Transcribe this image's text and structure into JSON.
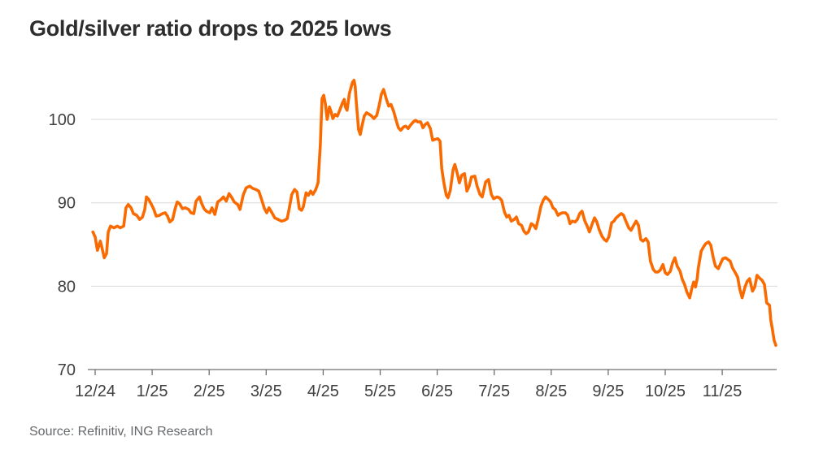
{
  "title": "Gold/silver ratio drops to 2025 lows",
  "source": "Source: Refinitiv, ING Research",
  "colors": {
    "line": "#f96a01",
    "grid": "#d9d9d9",
    "axis": "#6f6f6f",
    "title_text": "#2d2d2d",
    "tick_label": "#404040",
    "source_text": "#66696b"
  },
  "chart_data": {
    "type": "line",
    "title": "Gold/silver ratio drops to 2025 lows",
    "xlabel": "",
    "ylabel": "",
    "x_ticks": [
      "12/24",
      "1/25",
      "2/25",
      "3/25",
      "4/25",
      "5/25",
      "6/25",
      "7/25",
      "8/25",
      "9/25",
      "10/25",
      "11/25"
    ],
    "y_ticks": [
      70,
      80,
      90,
      100
    ],
    "ylim": [
      70,
      106
    ],
    "xlim_months": [
      -0.15,
      12.0
    ],
    "grid": "horizontal",
    "legend": "none",
    "series": [
      {
        "name": "Gold/silver ratio",
        "points": [
          [
            -0.04,
            86.5
          ],
          [
            0.0,
            85.9
          ],
          [
            0.04,
            84.3
          ],
          [
            0.09,
            85.4
          ],
          [
            0.11,
            84.9
          ],
          [
            0.16,
            83.4
          ],
          [
            0.2,
            83.9
          ],
          [
            0.23,
            86.5
          ],
          [
            0.27,
            87.2
          ],
          [
            0.33,
            87.0
          ],
          [
            0.39,
            87.2
          ],
          [
            0.44,
            87.0
          ],
          [
            0.5,
            87.2
          ],
          [
            0.54,
            89.4
          ],
          [
            0.58,
            89.8
          ],
          [
            0.63,
            89.4
          ],
          [
            0.67,
            88.7
          ],
          [
            0.73,
            88.5
          ],
          [
            0.78,
            88.0
          ],
          [
            0.83,
            88.3
          ],
          [
            0.87,
            89.2
          ],
          [
            0.9,
            90.7
          ],
          [
            0.94,
            90.4
          ],
          [
            0.98,
            89.9
          ],
          [
            1.03,
            89.2
          ],
          [
            1.07,
            88.4
          ],
          [
            1.13,
            88.5
          ],
          [
            1.18,
            88.7
          ],
          [
            1.23,
            88.8
          ],
          [
            1.27,
            88.4
          ],
          [
            1.31,
            87.7
          ],
          [
            1.36,
            88.0
          ],
          [
            1.4,
            89.2
          ],
          [
            1.44,
            90.1
          ],
          [
            1.48,
            89.9
          ],
          [
            1.53,
            89.3
          ],
          [
            1.58,
            89.4
          ],
          [
            1.64,
            89.2
          ],
          [
            1.68,
            88.8
          ],
          [
            1.73,
            88.7
          ],
          [
            1.77,
            90.2
          ],
          [
            1.83,
            90.7
          ],
          [
            1.87,
            89.9
          ],
          [
            1.91,
            89.3
          ],
          [
            1.95,
            89.0
          ],
          [
            2.01,
            88.8
          ],
          [
            2.05,
            89.4
          ],
          [
            2.1,
            88.6
          ],
          [
            2.15,
            90.1
          ],
          [
            2.21,
            90.4
          ],
          [
            2.25,
            90.7
          ],
          [
            2.3,
            90.2
          ],
          [
            2.35,
            91.1
          ],
          [
            2.4,
            90.6
          ],
          [
            2.44,
            90.1
          ],
          [
            2.5,
            89.8
          ],
          [
            2.54,
            89.2
          ],
          [
            2.6,
            91.0
          ],
          [
            2.65,
            91.8
          ],
          [
            2.71,
            92.0
          ],
          [
            2.77,
            91.7
          ],
          [
            2.82,
            91.6
          ],
          [
            2.87,
            91.4
          ],
          [
            2.91,
            90.6
          ],
          [
            2.97,
            89.3
          ],
          [
            3.01,
            88.8
          ],
          [
            3.05,
            89.4
          ],
          [
            3.11,
            88.7
          ],
          [
            3.15,
            88.2
          ],
          [
            3.21,
            88.0
          ],
          [
            3.27,
            87.8
          ],
          [
            3.32,
            87.9
          ],
          [
            3.37,
            88.1
          ],
          [
            3.41,
            89.5
          ],
          [
            3.45,
            91.0
          ],
          [
            3.5,
            91.6
          ],
          [
            3.54,
            91.3
          ],
          [
            3.58,
            89.3
          ],
          [
            3.62,
            89.1
          ],
          [
            3.65,
            89.5
          ],
          [
            3.7,
            91.2
          ],
          [
            3.74,
            90.9
          ],
          [
            3.78,
            91.4
          ],
          [
            3.82,
            91.0
          ],
          [
            3.87,
            91.6
          ],
          [
            3.91,
            92.4
          ],
          [
            3.95,
            97.0
          ],
          [
            3.98,
            102.5
          ],
          [
            4.01,
            102.9
          ],
          [
            4.04,
            101.8
          ],
          [
            4.07,
            100.0
          ],
          [
            4.11,
            101.5
          ],
          [
            4.14,
            100.9
          ],
          [
            4.17,
            100.1
          ],
          [
            4.21,
            100.6
          ],
          [
            4.25,
            100.4
          ],
          [
            4.29,
            101.1
          ],
          [
            4.34,
            102.0
          ],
          [
            4.37,
            102.4
          ],
          [
            4.39,
            101.5
          ],
          [
            4.42,
            101.1
          ],
          [
            4.46,
            103.1
          ],
          [
            4.51,
            104.4
          ],
          [
            4.54,
            104.7
          ],
          [
            4.56,
            104.0
          ],
          [
            4.58,
            102.1
          ],
          [
            4.62,
            98.8
          ],
          [
            4.65,
            98.2
          ],
          [
            4.68,
            99.2
          ],
          [
            4.72,
            100.4
          ],
          [
            4.76,
            100.8
          ],
          [
            4.81,
            100.6
          ],
          [
            4.85,
            100.4
          ],
          [
            4.89,
            100.1
          ],
          [
            4.94,
            100.5
          ],
          [
            4.98,
            101.6
          ],
          [
            5.02,
            103.0
          ],
          [
            5.06,
            103.6
          ],
          [
            5.11,
            102.4
          ],
          [
            5.15,
            101.6
          ],
          [
            5.19,
            101.8
          ],
          [
            5.24,
            100.9
          ],
          [
            5.28,
            99.9
          ],
          [
            5.32,
            99.0
          ],
          [
            5.36,
            98.7
          ],
          [
            5.41,
            99.1
          ],
          [
            5.45,
            99.2
          ],
          [
            5.49,
            98.9
          ],
          [
            5.53,
            99.3
          ],
          [
            5.58,
            99.7
          ],
          [
            5.62,
            99.9
          ],
          [
            5.66,
            99.7
          ],
          [
            5.71,
            99.7
          ],
          [
            5.75,
            99.0
          ],
          [
            5.79,
            99.4
          ],
          [
            5.83,
            99.6
          ],
          [
            5.88,
            98.9
          ],
          [
            5.92,
            97.5
          ],
          [
            5.96,
            97.6
          ],
          [
            6.01,
            97.7
          ],
          [
            6.05,
            97.4
          ],
          [
            6.08,
            94.1
          ],
          [
            6.12,
            92.3
          ],
          [
            6.16,
            90.9
          ],
          [
            6.19,
            90.6
          ],
          [
            6.23,
            91.5
          ],
          [
            6.28,
            94.0
          ],
          [
            6.31,
            94.6
          ],
          [
            6.35,
            93.6
          ],
          [
            6.39,
            92.4
          ],
          [
            6.43,
            93.3
          ],
          [
            6.48,
            93.5
          ],
          [
            6.52,
            91.4
          ],
          [
            6.56,
            92.0
          ],
          [
            6.6,
            93.1
          ],
          [
            6.66,
            93.2
          ],
          [
            6.7,
            92.0
          ],
          [
            6.75,
            91.0
          ],
          [
            6.79,
            90.7
          ],
          [
            6.85,
            92.5
          ],
          [
            6.9,
            92.8
          ],
          [
            6.95,
            91.0
          ],
          [
            6.99,
            90.5
          ],
          [
            7.05,
            90.7
          ],
          [
            7.09,
            90.6
          ],
          [
            7.13,
            90.3
          ],
          [
            7.18,
            88.9
          ],
          [
            7.22,
            88.3
          ],
          [
            7.26,
            88.5
          ],
          [
            7.3,
            87.8
          ],
          [
            7.35,
            88.0
          ],
          [
            7.39,
            88.3
          ],
          [
            7.43,
            87.5
          ],
          [
            7.48,
            87.3
          ],
          [
            7.52,
            86.6
          ],
          [
            7.56,
            86.3
          ],
          [
            7.6,
            86.5
          ],
          [
            7.65,
            87.5
          ],
          [
            7.69,
            87.3
          ],
          [
            7.73,
            86.9
          ],
          [
            7.77,
            88.0
          ],
          [
            7.82,
            89.6
          ],
          [
            7.86,
            90.3
          ],
          [
            7.9,
            90.7
          ],
          [
            7.95,
            90.4
          ],
          [
            7.99,
            90.1
          ],
          [
            8.03,
            89.4
          ],
          [
            8.07,
            89.2
          ],
          [
            8.12,
            88.5
          ],
          [
            8.16,
            88.7
          ],
          [
            8.2,
            88.8
          ],
          [
            8.25,
            88.8
          ],
          [
            8.29,
            88.5
          ],
          [
            8.33,
            87.5
          ],
          [
            8.37,
            87.8
          ],
          [
            8.42,
            87.7
          ],
          [
            8.46,
            88.0
          ],
          [
            8.5,
            88.7
          ],
          [
            8.54,
            89.0
          ],
          [
            8.59,
            87.8
          ],
          [
            8.63,
            87.2
          ],
          [
            8.67,
            86.5
          ],
          [
            8.72,
            87.5
          ],
          [
            8.76,
            88.2
          ],
          [
            8.8,
            87.7
          ],
          [
            8.84,
            86.8
          ],
          [
            8.89,
            86.0
          ],
          [
            8.93,
            85.6
          ],
          [
            8.97,
            85.4
          ],
          [
            9.01,
            85.9
          ],
          [
            9.06,
            87.6
          ],
          [
            9.1,
            87.8
          ],
          [
            9.14,
            88.2
          ],
          [
            9.19,
            88.5
          ],
          [
            9.23,
            88.7
          ],
          [
            9.27,
            88.5
          ],
          [
            9.31,
            87.8
          ],
          [
            9.36,
            87.0
          ],
          [
            9.4,
            86.7
          ],
          [
            9.44,
            87.2
          ],
          [
            9.49,
            87.8
          ],
          [
            9.53,
            87.3
          ],
          [
            9.57,
            85.6
          ],
          [
            9.61,
            85.4
          ],
          [
            9.66,
            85.7
          ],
          [
            9.7,
            85.3
          ],
          [
            9.74,
            83.0
          ],
          [
            9.79,
            82.0
          ],
          [
            9.83,
            81.7
          ],
          [
            9.87,
            81.7
          ],
          [
            9.91,
            81.9
          ],
          [
            9.96,
            82.6
          ],
          [
            10.0,
            81.6
          ],
          [
            10.04,
            81.4
          ],
          [
            10.09,
            81.8
          ],
          [
            10.13,
            82.8
          ],
          [
            10.17,
            83.4
          ],
          [
            10.21,
            82.4
          ],
          [
            10.26,
            81.8
          ],
          [
            10.3,
            80.8
          ],
          [
            10.34,
            80.2
          ],
          [
            10.38,
            79.3
          ],
          [
            10.43,
            78.6
          ],
          [
            10.47,
            79.8
          ],
          [
            10.5,
            80.5
          ],
          [
            10.53,
            79.9
          ],
          [
            10.56,
            80.9
          ],
          [
            10.58,
            82.2
          ],
          [
            10.63,
            84.2
          ],
          [
            10.67,
            84.7
          ],
          [
            10.71,
            85.1
          ],
          [
            10.76,
            85.3
          ],
          [
            10.8,
            84.9
          ],
          [
            10.84,
            83.5
          ],
          [
            10.88,
            82.4
          ],
          [
            10.93,
            82.1
          ],
          [
            10.97,
            82.7
          ],
          [
            11.01,
            83.3
          ],
          [
            11.06,
            83.4
          ],
          [
            11.1,
            83.2
          ],
          [
            11.14,
            83.0
          ],
          [
            11.18,
            82.2
          ],
          [
            11.23,
            81.6
          ],
          [
            11.27,
            81.1
          ],
          [
            11.31,
            79.6
          ],
          [
            11.35,
            78.6
          ],
          [
            11.4,
            79.9
          ],
          [
            11.44,
            80.6
          ],
          [
            11.48,
            80.9
          ],
          [
            11.53,
            79.4
          ],
          [
            11.57,
            79.9
          ],
          [
            11.61,
            81.3
          ],
          [
            11.65,
            81.0
          ],
          [
            11.7,
            80.7
          ],
          [
            11.74,
            80.2
          ],
          [
            11.78,
            78.0
          ],
          [
            11.83,
            77.7
          ],
          [
            11.85,
            76.0
          ],
          [
            11.88,
            74.8
          ],
          [
            11.91,
            73.5
          ],
          [
            11.94,
            72.9
          ]
        ]
      }
    ]
  }
}
